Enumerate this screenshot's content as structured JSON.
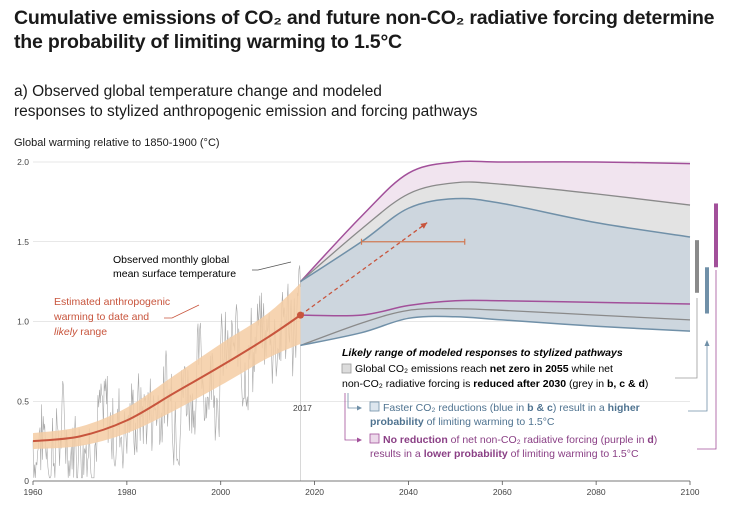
{
  "title_line1": "Cumulative emissions of CO₂ and future non-CO₂ radiative forcing determine",
  "title_line2": "the probability of limiting warming to 1.5°C",
  "panel_line1": "a) Observed global temperature change and modeled",
  "panel_line2": "responses to stylized anthropogenic emission and forcing pathways",
  "chart_data": {
    "type": "area",
    "ylabel": "Global warming relative to 1850-1900 (°C)",
    "xlim": [
      1960,
      2100
    ],
    "ylim": [
      0,
      2.0
    ],
    "x_ticks": [
      1960,
      1980,
      2000,
      2020,
      2040,
      2060,
      2080,
      2100
    ],
    "y_ticks": [
      "0",
      "0.5",
      "1.0",
      "1.5",
      "2.0"
    ],
    "year_marker": "2017",
    "estimated_warming": {
      "x": [
        1960,
        1970,
        1980,
        1990,
        2000,
        2010,
        2017
      ],
      "y": [
        0.25,
        0.28,
        0.38,
        0.55,
        0.72,
        0.9,
        1.04
      ],
      "likely_low": [
        0.2,
        0.22,
        0.3,
        0.44,
        0.6,
        0.77,
        0.86
      ],
      "likely_high": [
        0.3,
        0.34,
        0.46,
        0.66,
        0.86,
        1.05,
        1.24
      ]
    },
    "projection_ranges": {
      "x": [
        2017,
        2030,
        2040,
        2050,
        2060,
        2080,
        2100
      ],
      "grey_upper": [
        1.25,
        1.58,
        1.8,
        1.87,
        1.86,
        1.8,
        1.73
      ],
      "purple_upper": [
        1.25,
        1.66,
        1.93,
        2.0,
        2.0,
        2.0,
        1.99
      ],
      "blue_upper": [
        1.25,
        1.5,
        1.71,
        1.77,
        1.74,
        1.62,
        1.53
      ],
      "purple_lower": [
        1.04,
        1.04,
        1.1,
        1.13,
        1.13,
        1.12,
        1.11
      ],
      "grey_lower": [
        0.85,
        0.99,
        1.07,
        1.08,
        1.07,
        1.04,
        1.01
      ],
      "blue_lower": [
        0.85,
        0.93,
        1.02,
        1.03,
        1.01,
        0.97,
        0.94
      ]
    },
    "dashed_arrow": {
      "from": [
        2017,
        1.04
      ],
      "to": [
        2044,
        1.62
      ]
    },
    "range_bar": {
      "xmin": 2030,
      "xmax": 2052,
      "y": 1.5
    },
    "bars_2100": [
      {
        "low": 1.18,
        "high": 1.51
      },
      {
        "low": 1.05,
        "high": 1.34
      },
      {
        "low": 1.34,
        "high": 1.74
      }
    ],
    "colors": {
      "grey": "#9b9b9b",
      "blue": "#7090a8",
      "purple": "#a2509a",
      "orange": "#c8553d",
      "likely": "#f5cda3",
      "obs": "#a8a8a8"
    },
    "annotations": {
      "observed_l1": "Observed monthly global",
      "observed_l2": "mean surface temperature",
      "estimated_l1": "Estimated anthropogenic",
      "estimated_l2": "warming to date and",
      "estimated_l3a": "likely",
      "estimated_l3b": " range"
    },
    "legend": {
      "heading": "Likely range of modeled responses to stylized pathways",
      "grey_1a": "Global CO₂ emissions reach ",
      "grey_1b": "net zero in 2055",
      "grey_1c": " while net",
      "grey_2a": "non-CO₂ radiative forcing is ",
      "grey_2b": "reduced after 2030",
      "grey_2c": " (grey in ",
      "grey_2d": "b, c & d",
      "grey_2e": ")",
      "blue_1a": "Faster CO₂ reductions (blue in ",
      "blue_1b": "b & c",
      "blue_1c": ") result in a ",
      "blue_1d": "higher",
      "blue_2a": "probability",
      "blue_2b": " of limiting warming to 1.5°C",
      "purple_1a": "No reduction",
      "purple_1b": " of net non-CO₂ radiative forcing (purple in ",
      "purple_1c": "d",
      "purple_1d": ")",
      "purple_2a": "results in a ",
      "purple_2b": "lower probability",
      "purple_2c": " of limiting warming to 1.5°C"
    }
  }
}
